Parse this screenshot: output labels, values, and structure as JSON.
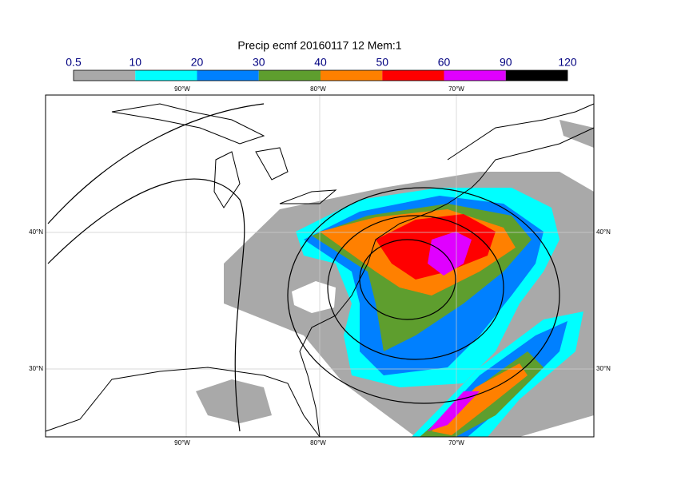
{
  "title": "Precip ecmf 20160117 12 Mem:1",
  "legend": {
    "levels": [
      0.5,
      10,
      20,
      30,
      40,
      50,
      60,
      90,
      120
    ],
    "colors": [
      "#a9a9a9",
      "#00ffff",
      "#0080ff",
      "#5e9e2e",
      "#ff8000",
      "#ff0000",
      "#e000ff",
      "#000000"
    ]
  },
  "lon_labels": [
    "90°W",
    "80°W",
    "70°W"
  ],
  "lat_labels": [
    "40°N",
    "30°N"
  ]
}
